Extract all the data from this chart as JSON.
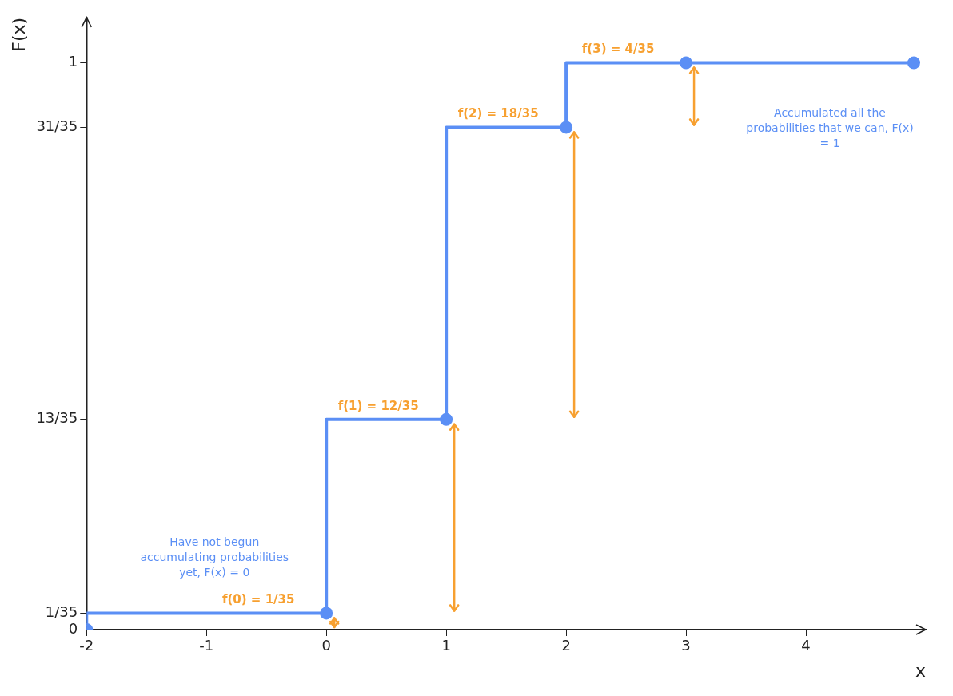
{
  "chart_data": {
    "type": "step",
    "xlabel": "x",
    "ylabel": "F(x)",
    "x": [
      -2,
      0,
      1,
      2,
      3,
      4.9
    ],
    "series": [
      {
        "color": "#5b8ff5",
        "values": [
          0,
          0.029,
          0.371,
          0.886,
          1,
          1
        ]
      }
    ],
    "xlim": [
      -2,
      5
    ],
    "xticks": [
      -2,
      -1,
      0,
      1,
      2,
      3,
      4
    ],
    "ylim": [
      0,
      1.08
    ],
    "yticks": [
      0,
      {
        "value": 0.029,
        "label": "1/35"
      },
      {
        "value": 0.371,
        "label": "13/35"
      },
      {
        "value": 0.886,
        "label": "31/35"
      },
      1
    ],
    "grid": false,
    "legend": false,
    "marker": "circle",
    "annotations": [
      "f(0) = 1/35",
      "f(1) = 12/35",
      "f(2) = 18/35",
      "f(3) = 4/35",
      "Have not begun accumulating probabilities yet, F(x) = 0",
      "Accumulated all the probabilities that we can, F(x) = 1"
    ]
  }
}
